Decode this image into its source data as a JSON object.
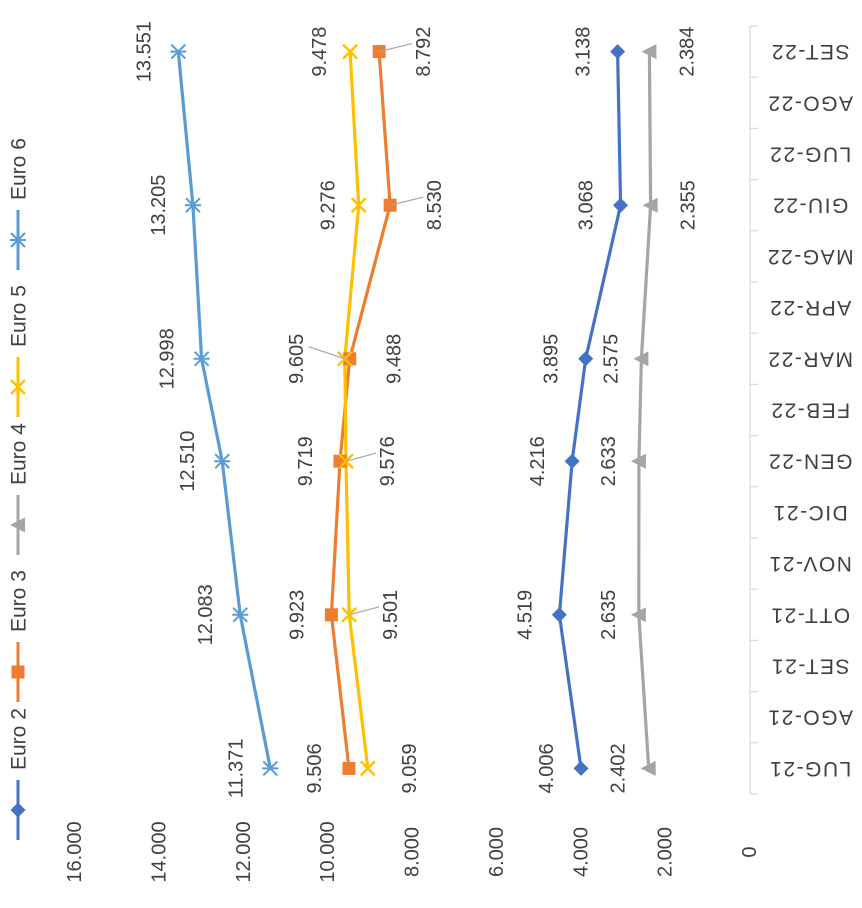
{
  "chart_data": {
    "type": "line",
    "title": "",
    "xlabel": "",
    "ylabel": "",
    "ylim": [
      0,
      16000
    ],
    "y_ticks": [
      "0",
      "2.000",
      "4.000",
      "6.000",
      "8.000",
      "10.000",
      "12.000",
      "14.000",
      "16.000"
    ],
    "y_tick_values": [
      0,
      2000,
      4000,
      6000,
      8000,
      10000,
      12000,
      14000,
      16000
    ],
    "categories": [
      "LUG-21",
      "AGO-21",
      "SET-21",
      "OTT-21",
      "NOV-21",
      "DIC-21",
      "GEN-22",
      "FEB-22",
      "MAR-22",
      "APR-22",
      "MAG-22",
      "GIU-22",
      "LUG-22",
      "AGO-22",
      "SET-22"
    ],
    "grid": false,
    "legend_position": "left",
    "series": [
      {
        "name": "Euro 2",
        "color": "#4472C4",
        "marker": "diamond",
        "values": [
          4006,
          null,
          null,
          4519,
          null,
          null,
          4216,
          null,
          3895,
          null,
          null,
          3068,
          null,
          null,
          3138
        ],
        "labels": [
          "4.006",
          null,
          null,
          "4.519",
          null,
          null,
          "4.216",
          null,
          "3.895",
          null,
          null,
          "3.068",
          null,
          null,
          "3.138"
        ]
      },
      {
        "name": "Euro 3",
        "color": "#ED7D31",
        "marker": "square",
        "values": [
          9506,
          null,
          null,
          9923,
          null,
          null,
          9719,
          null,
          9488,
          null,
          null,
          8530,
          null,
          null,
          8792
        ],
        "labels": [
          "9.506",
          null,
          null,
          "9.923",
          null,
          null,
          "9.719",
          null,
          "9.488",
          null,
          null,
          "8.530",
          null,
          null,
          "8.792"
        ]
      },
      {
        "name": "Euro 4",
        "color": "#A5A5A5",
        "marker": "triangle",
        "values": [
          2402,
          null,
          null,
          2635,
          null,
          null,
          2633,
          null,
          2575,
          null,
          null,
          2355,
          null,
          null,
          2384
        ],
        "labels": [
          "2.402",
          null,
          null,
          "2.635",
          null,
          null,
          "2.633",
          null,
          "2.575",
          null,
          null,
          "2.355",
          null,
          null,
          "2.384"
        ]
      },
      {
        "name": "Euro 5",
        "color": "#FFC000",
        "marker": "x",
        "values": [
          9059,
          null,
          null,
          9501,
          null,
          null,
          9576,
          null,
          9605,
          null,
          null,
          9276,
          null,
          null,
          9478
        ],
        "labels": [
          "9.059",
          null,
          null,
          "9.501",
          null,
          null,
          "9.576",
          null,
          "9.605",
          null,
          null,
          "9.276",
          null,
          null,
          "9.478"
        ]
      },
      {
        "name": "Euro 6",
        "color": "#5B9BD5",
        "marker": "star",
        "values": [
          11371,
          null,
          null,
          12083,
          null,
          null,
          12510,
          null,
          12998,
          null,
          null,
          13205,
          null,
          null,
          13551
        ],
        "labels": [
          "11.371",
          null,
          null,
          "12.083",
          null,
          null,
          "12.510",
          null,
          "12.998",
          null,
          null,
          "13.205",
          null,
          null,
          "13.551"
        ]
      }
    ]
  }
}
